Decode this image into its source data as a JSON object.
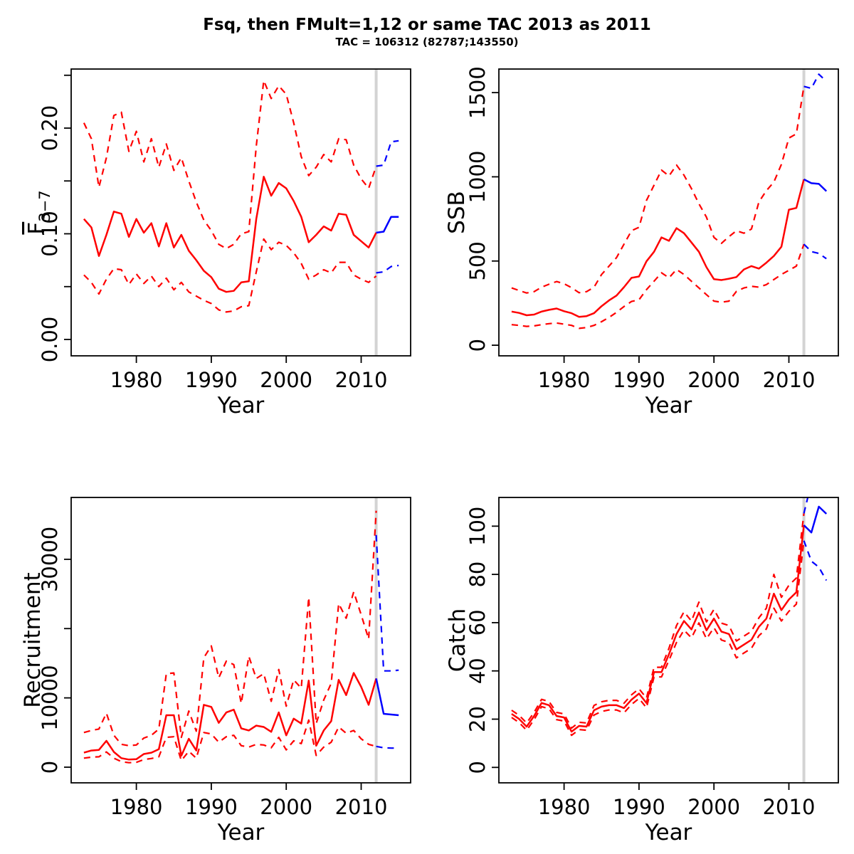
{
  "header": {
    "title": "Fsq, then FMult=1,12 or same TAC 2013 as 2011",
    "subtitle": "TAC = 106312 (82787;143550)"
  },
  "colors": {
    "red": "#FF0000",
    "blue": "#0000FF",
    "vline": "#D3D3D3",
    "axis": "#000000"
  },
  "chart_data": [
    {
      "id": "fbar",
      "type": "line",
      "xlabel": "Year",
      "ylabel": {
        "main": "F",
        "sub": "3−7",
        "overline": true
      },
      "xlim": [
        1971.3,
        2016.6
      ],
      "ylim": [
        -0.0155,
        0.2559
      ],
      "xticks": [
        1980,
        1990,
        2000,
        2010
      ],
      "yticks": [
        {
          "v": 0.0,
          "label": "0.00"
        },
        {
          "v": 0.05,
          "label": ""
        },
        {
          "v": 0.1,
          "label": "0.10"
        },
        {
          "v": 0.15,
          "label": ""
        },
        {
          "v": 0.2,
          "label": "0.20"
        },
        {
          "v": 0.25,
          "label": ""
        }
      ],
      "vline": 2012,
      "grid": false,
      "legend": "none",
      "series": [
        {
          "name": "upper_ci",
          "color": "red",
          "style": "dashed",
          "x_start": 1973,
          "values": [
            0.205,
            0.19,
            0.144,
            0.172,
            0.212,
            0.215,
            0.178,
            0.197,
            0.168,
            0.19,
            0.163,
            0.185,
            0.16,
            0.172,
            0.15,
            0.13,
            0.113,
            0.103,
            0.09,
            0.086,
            0.09,
            0.1,
            0.102,
            0.183,
            0.245,
            0.228,
            0.24,
            0.232,
            0.205,
            0.173,
            0.155,
            0.163,
            0.175,
            0.168,
            0.19,
            0.189,
            0.165,
            0.152,
            0.143,
            0.164
          ]
        },
        {
          "name": "lower_ci",
          "color": "red",
          "style": "dashed",
          "x_start": 1973,
          "values": [
            0.061,
            0.054,
            0.043,
            0.057,
            0.067,
            0.066,
            0.052,
            0.062,
            0.053,
            0.06,
            0.05,
            0.058,
            0.047,
            0.054,
            0.045,
            0.041,
            0.037,
            0.034,
            0.028,
            0.026,
            0.027,
            0.031,
            0.032,
            0.064,
            0.095,
            0.085,
            0.092,
            0.089,
            0.082,
            0.072,
            0.057,
            0.061,
            0.066,
            0.063,
            0.073,
            0.073,
            0.061,
            0.057,
            0.054,
            0.06
          ]
        },
        {
          "name": "median",
          "color": "red",
          "style": "solid",
          "x_start": 1973,
          "values": [
            0.114,
            0.106,
            0.079,
            0.099,
            0.121,
            0.119,
            0.097,
            0.114,
            0.101,
            0.11,
            0.088,
            0.11,
            0.087,
            0.099,
            0.084,
            0.075,
            0.065,
            0.059,
            0.048,
            0.045,
            0.046,
            0.054,
            0.055,
            0.114,
            0.154,
            0.136,
            0.148,
            0.143,
            0.131,
            0.116,
            0.092,
            0.099,
            0.107,
            0.103,
            0.119,
            0.118,
            0.099,
            0.093,
            0.087,
            0.101
          ]
        },
        {
          "name": "forecast_upper",
          "color": "blue",
          "style": "dashed",
          "x_start": 2012,
          "values": [
            0.164,
            0.165,
            0.187,
            0.188
          ]
        },
        {
          "name": "forecast_lower",
          "color": "blue",
          "style": "dashed",
          "x_start": 2012,
          "values": [
            0.063,
            0.064,
            0.069,
            0.07
          ]
        },
        {
          "name": "forecast_median",
          "color": "blue",
          "style": "solid",
          "x_start": 2012,
          "values": [
            0.101,
            0.102,
            0.116,
            0.116
          ]
        }
      ]
    },
    {
      "id": "ssb",
      "type": "line",
      "xlabel": "Year",
      "ylabel": {
        "main": "SSB"
      },
      "xlim": [
        1971.3,
        2016.6
      ],
      "ylim": [
        -63,
        1640
      ],
      "xticks": [
        1980,
        1990,
        2000,
        2010
      ],
      "yticks": [
        {
          "v": 0,
          "label": "0"
        },
        {
          "v": 500,
          "label": "500"
        },
        {
          "v": 1000,
          "label": "1000"
        },
        {
          "v": 1500,
          "label": "1500"
        }
      ],
      "vline": 2012,
      "grid": false,
      "legend": "none",
      "series": [
        {
          "name": "upper_ci",
          "color": "red",
          "style": "dashed",
          "x_start": 1973,
          "values": [
            340,
            325,
            310,
            318,
            345,
            362,
            378,
            365,
            342,
            312,
            318,
            345,
            420,
            470,
            520,
            600,
            680,
            700,
            860,
            950,
            1040,
            1005,
            1070,
            1010,
            930,
            840,
            760,
            640,
            605,
            645,
            680,
            665,
            690,
            851,
            918,
            969,
            1074,
            1230,
            1255,
            1537
          ]
        },
        {
          "name": "lower_ci",
          "color": "red",
          "style": "dashed",
          "x_start": 1973,
          "values": [
            122,
            118,
            112,
            115,
            122,
            128,
            132,
            125,
            118,
            100,
            105,
            118,
            140,
            165,
            195,
            230,
            260,
            270,
            330,
            380,
            430,
            400,
            450,
            420,
            380,
            340,
            300,
            262,
            255,
            262,
            320,
            340,
            350,
            345,
            360,
            390,
            420,
            445,
            470,
            600
          ]
        },
        {
          "name": "median",
          "color": "red",
          "style": "solid",
          "x_start": 1973,
          "values": [
            200,
            192,
            178,
            182,
            200,
            210,
            218,
            202,
            190,
            168,
            173,
            190,
            232,
            266,
            295,
            345,
            400,
            408,
            498,
            555,
            640,
            620,
            695,
            665,
            610,
            555,
            463,
            392,
            387,
            395,
            405,
            450,
            470,
            455,
            490,
            530,
            585,
            805,
            815,
            985
          ]
        },
        {
          "name": "forecast_upper",
          "color": "blue",
          "style": "dashed",
          "x_start": 2012,
          "values": [
            1537,
            1525,
            1609,
            1567
          ]
        },
        {
          "name": "forecast_lower",
          "color": "blue",
          "style": "dashed",
          "x_start": 2012,
          "values": [
            600,
            556,
            545,
            514
          ]
        },
        {
          "name": "forecast_median",
          "color": "blue",
          "style": "solid",
          "x_start": 2012,
          "values": [
            985,
            962,
            958,
            915
          ]
        }
      ]
    },
    {
      "id": "recruitment",
      "type": "line",
      "xlabel": "Year",
      "ylabel": {
        "main": "Recruitment"
      },
      "xlim": [
        1971.3,
        2016.6
      ],
      "ylim": [
        -2259,
        38923
      ],
      "xticks": [
        1980,
        1990,
        2000,
        2010
      ],
      "yticks": [
        {
          "v": 0,
          "label": "0"
        },
        {
          "v": 10000,
          "label": "10000"
        },
        {
          "v": 20000,
          "label": ""
        },
        {
          "v": 30000,
          "label": "30000"
        }
      ],
      "vline": 2012,
      "grid": false,
      "legend": "none",
      "series": [
        {
          "name": "upper_ci",
          "color": "red",
          "style": "dashed",
          "x_start": 1973,
          "values": [
            5000,
            5300,
            5500,
            7800,
            4600,
            3300,
            3100,
            3200,
            4200,
            4600,
            5500,
            13500,
            13600,
            4300,
            8100,
            5200,
            15800,
            17500,
            12900,
            15300,
            14800,
            9200,
            16000,
            12800,
            13500,
            9500,
            14100,
            8800,
            12600,
            11400,
            24500,
            6300,
            9700,
            12100,
            23600,
            21500,
            25300,
            22000,
            18500,
            37000
          ]
        },
        {
          "name": "lower_ci",
          "color": "red",
          "style": "dashed",
          "x_start": 1973,
          "values": [
            1300,
            1450,
            1500,
            2200,
            1300,
            800,
            650,
            700,
            1100,
            1250,
            1500,
            4300,
            4400,
            950,
            2300,
            1300,
            5000,
            4800,
            3600,
            4400,
            4600,
            3100,
            2900,
            3300,
            3200,
            2800,
            4300,
            2500,
            3800,
            3400,
            6800,
            1700,
            2900,
            3600,
            5800,
            4900,
            5300,
            4100,
            3300,
            3000
          ]
        },
        {
          "name": "median",
          "color": "red",
          "style": "solid",
          "x_start": 1973,
          "values": [
            2100,
            2400,
            2500,
            3800,
            2200,
            1300,
            1100,
            1150,
            1900,
            2100,
            2600,
            7500,
            7500,
            1650,
            4100,
            2400,
            9000,
            8700,
            6400,
            7900,
            8300,
            5600,
            5300,
            6000,
            5800,
            5100,
            7900,
            4600,
            7000,
            6300,
            12500,
            3100,
            5300,
            6650,
            12600,
            10400,
            13600,
            11600,
            9000,
            12800
          ]
        },
        {
          "name": "forecast_upper",
          "color": "blue",
          "style": "dashed",
          "x_start": 2012,
          "values": [
            33500,
            13900,
            13900,
            14000
          ]
        },
        {
          "name": "forecast_lower",
          "color": "blue",
          "style": "dashed",
          "x_start": 2012,
          "values": [
            3000,
            2800,
            2750,
            2750
          ]
        },
        {
          "name": "forecast_median",
          "color": "blue",
          "style": "solid",
          "x_start": 2012,
          "values": [
            12800,
            7700,
            7600,
            7500
          ]
        }
      ]
    },
    {
      "id": "catch",
      "type": "line",
      "xlabel": "Year",
      "ylabel": {
        "main": "Catch"
      },
      "xlim": [
        1971.3,
        2016.6
      ],
      "ylim": [
        -6.4,
        111.9
      ],
      "xticks": [
        1980,
        1990,
        2000,
        2010
      ],
      "yticks": [
        {
          "v": 0,
          "label": "0"
        },
        {
          "v": 20,
          "label": "20"
        },
        {
          "v": 40,
          "label": "40"
        },
        {
          "v": 60,
          "label": "60"
        },
        {
          "v": 80,
          "label": "80"
        },
        {
          "v": 100,
          "label": "100"
        }
      ],
      "vline": 2012,
      "grid": false,
      "legend": "none",
      "series": [
        {
          "name": "upper_ci",
          "color": "red",
          "style": "dashed",
          "x_start": 1973,
          "values": [
            23.7,
            21.6,
            18.4,
            22.8,
            28.2,
            27.3,
            22.8,
            22.2,
            16.3,
            18.7,
            18.4,
            25.7,
            27.2,
            27.8,
            27.8,
            26.6,
            30.1,
            32.6,
            28.7,
            41.5,
            41.5,
            49.4,
            58.8,
            64.5,
            60.7,
            68.5,
            60.3,
            65.5,
            59.8,
            58.8,
            52.4,
            54.4,
            56.4,
            62.0,
            66.0,
            80.0,
            70.5,
            75.5,
            78.5,
            105.3
          ]
        },
        {
          "name": "lower_ci",
          "color": "red",
          "style": "dashed",
          "x_start": 1973,
          "values": [
            20.7,
            18.6,
            15.4,
            19.8,
            25.2,
            24.3,
            19.8,
            19.2,
            13.3,
            15.7,
            15.4,
            21.7,
            23.2,
            23.8,
            23.8,
            22.6,
            26.1,
            28.6,
            24.7,
            37.5,
            37.5,
            44.4,
            51.8,
            56.9,
            53.7,
            59.9,
            53.3,
            57.9,
            52.8,
            51.8,
            45.4,
            47.4,
            49.4,
            54.6,
            57.4,
            66.0,
            60.7,
            64.7,
            67.7,
            94.0
          ]
        },
        {
          "name": "median",
          "color": "red",
          "style": "solid",
          "x_start": 1973,
          "values": [
            22.2,
            20.1,
            16.9,
            21.3,
            26.7,
            25.8,
            21.3,
            20.7,
            14.8,
            17.2,
            16.9,
            23.7,
            25.2,
            25.8,
            25.8,
            24.6,
            28.1,
            30.6,
            26.7,
            39.5,
            39.5,
            46.9,
            55.3,
            60.7,
            57.2,
            64.2,
            56.8,
            61.7,
            56.3,
            55.3,
            48.9,
            50.9,
            52.9,
            58.3,
            61.7,
            72.0,
            65.2,
            69.6,
            72.6,
            100.4
          ]
        },
        {
          "name": "forecast_upper",
          "color": "blue",
          "style": "dashed",
          "x_start": 2012,
          "values": [
            105.3,
            118,
            120,
            119
          ]
        },
        {
          "name": "forecast_lower",
          "color": "blue",
          "style": "dashed",
          "x_start": 2012,
          "values": [
            94.0,
            85.5,
            83.0,
            77.5
          ]
        },
        {
          "name": "forecast_median",
          "color": "blue",
          "style": "solid",
          "x_start": 2012,
          "values": [
            100.4,
            97.4,
            108.1,
            105.1
          ]
        }
      ]
    }
  ]
}
